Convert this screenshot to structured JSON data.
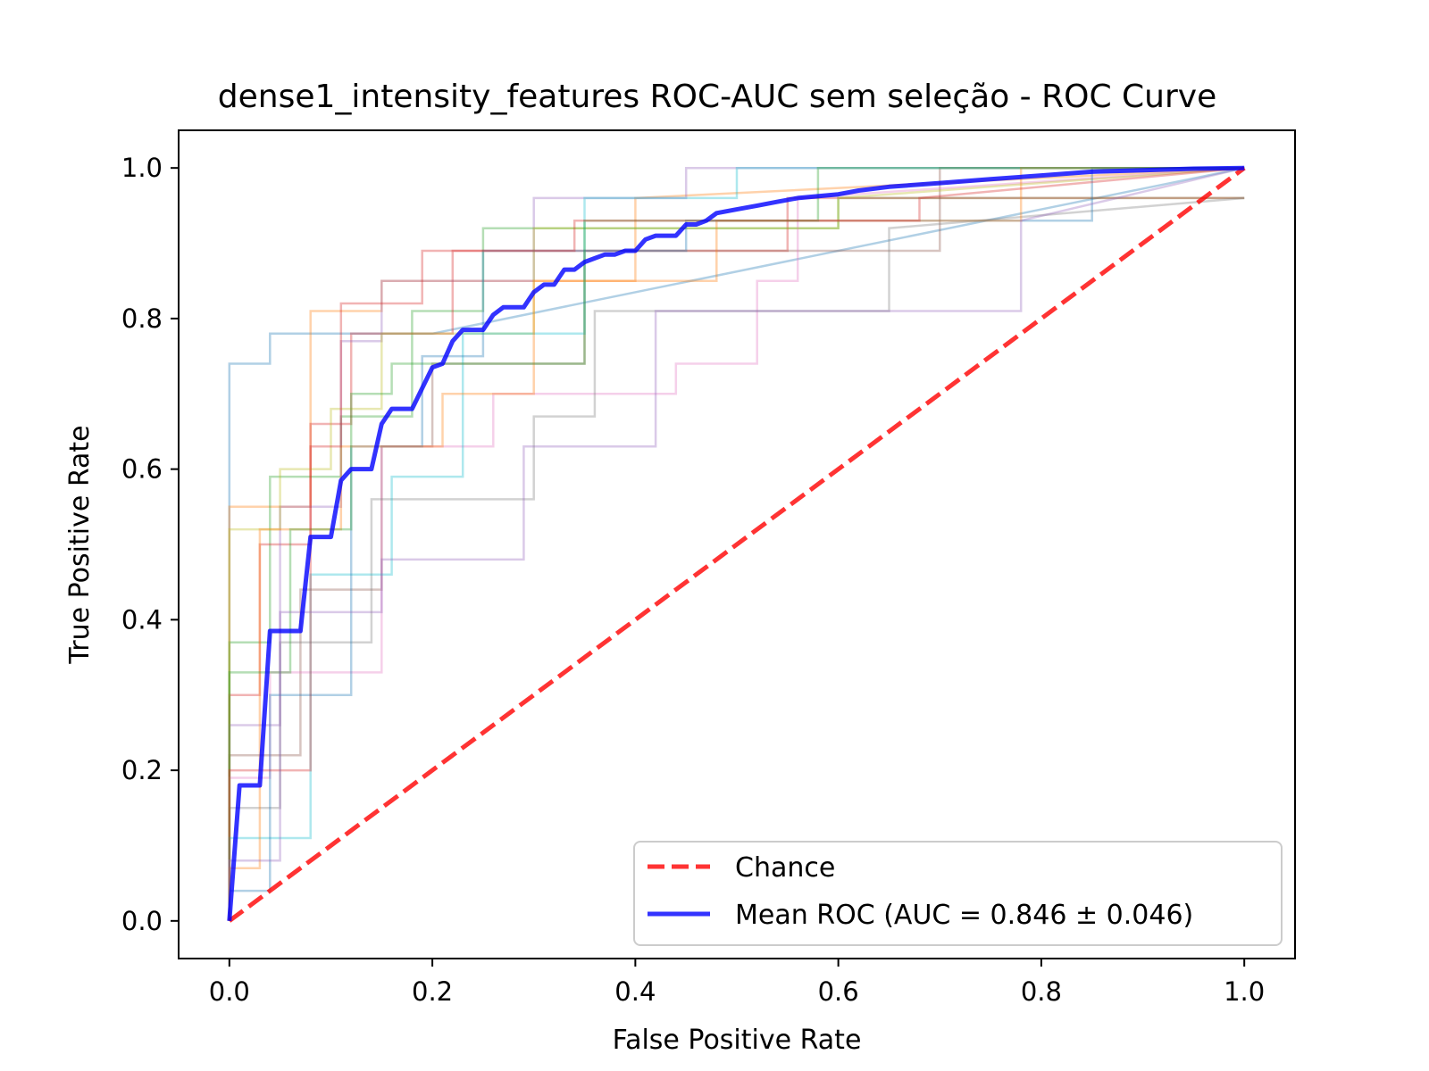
{
  "chart_data": {
    "type": "line",
    "title": "dense1_intensity_features ROC-AUC sem seleção - ROC Curve",
    "xlabel": "False Positive Rate",
    "ylabel": "True Positive Rate",
    "xlim": [
      -0.05,
      1.05
    ],
    "ylim": [
      -0.05,
      1.05
    ],
    "xticks": [
      0.0,
      0.2,
      0.4,
      0.6,
      0.8,
      1.0
    ],
    "yticks": [
      0.0,
      0.2,
      0.4,
      0.6,
      0.8,
      1.0
    ],
    "xtick_labels": [
      "0.0",
      "0.2",
      "0.4",
      "0.6",
      "0.8",
      "1.0"
    ],
    "ytick_labels": [
      "0.0",
      "0.2",
      "0.4",
      "0.6",
      "0.8",
      "1.0"
    ],
    "grid": false,
    "legend_position": "lower-right",
    "legend": [
      {
        "label": "Chance",
        "color": "#ff0000",
        "style": "dashed"
      },
      {
        "label": "Mean ROC (AUC = 0.846 ± 0.046)",
        "color": "#0000ff",
        "style": "solid"
      }
    ],
    "series": [
      {
        "name": "Chance",
        "color": "#ff0000",
        "style": "dashed",
        "x": [
          0.0,
          1.0
        ],
        "y": [
          0.0,
          1.0
        ]
      },
      {
        "name": "Mean ROC (AUC = 0.846 ± 0.046)",
        "color": "#0000ff",
        "style": "solid",
        "x": [
          0.0,
          0.01,
          0.03,
          0.04,
          0.07,
          0.08,
          0.1,
          0.11,
          0.12,
          0.14,
          0.15,
          0.16,
          0.18,
          0.2,
          0.21,
          0.22,
          0.23,
          0.25,
          0.26,
          0.27,
          0.29,
          0.3,
          0.31,
          0.32,
          0.33,
          0.34,
          0.35,
          0.36,
          0.37,
          0.38,
          0.39,
          0.4,
          0.41,
          0.42,
          0.44,
          0.45,
          0.46,
          0.47,
          0.48,
          0.5,
          0.52,
          0.54,
          0.56,
          0.6,
          0.62,
          0.65,
          0.7,
          0.75,
          0.8,
          0.85,
          0.9,
          0.95,
          1.0
        ],
        "y": [
          0.0,
          0.18,
          0.18,
          0.385,
          0.385,
          0.51,
          0.51,
          0.585,
          0.6,
          0.6,
          0.66,
          0.68,
          0.68,
          0.735,
          0.74,
          0.77,
          0.785,
          0.785,
          0.805,
          0.815,
          0.815,
          0.835,
          0.845,
          0.845,
          0.865,
          0.865,
          0.875,
          0.88,
          0.885,
          0.885,
          0.89,
          0.89,
          0.905,
          0.91,
          0.91,
          0.925,
          0.925,
          0.93,
          0.94,
          0.945,
          0.95,
          0.955,
          0.96,
          0.965,
          0.97,
          0.975,
          0.98,
          0.985,
          0.99,
          0.995,
          0.997,
          0.999,
          1.0
        ]
      }
    ],
    "fold_colors": [
      "#1f77b4",
      "#ff7f0e",
      "#2ca02c",
      "#d62728",
      "#9467bd",
      "#8c564b",
      "#e377c2",
      "#7f7f7f",
      "#bcbd22",
      "#17becf"
    ],
    "fold_curves": [
      {
        "x": [
          0,
          0,
          0.04,
          0.04,
          0.2,
          1.0
        ],
        "y": [
          0,
          0.74,
          0.74,
          0.78,
          0.78,
          1.0
        ]
      },
      {
        "x": [
          0,
          0,
          0.08,
          0.08,
          0.15,
          0.15,
          0.4,
          0.4,
          1.0
        ],
        "y": [
          0,
          0.55,
          0.55,
          0.81,
          0.81,
          0.85,
          0.85,
          0.96,
          1.0
        ]
      },
      {
        "x": [
          0,
          0,
          0.04,
          0.04,
          0.11,
          0.11,
          0.18,
          0.18,
          0.25,
          0.25,
          0.6,
          0.6,
          1.0
        ],
        "y": [
          0,
          0.37,
          0.37,
          0.59,
          0.59,
          0.67,
          0.67,
          0.81,
          0.81,
          0.92,
          0.92,
          0.96,
          0.96
        ]
      },
      {
        "x": [
          0,
          0,
          0.03,
          0.03,
          0.08,
          0.08,
          0.12,
          0.12,
          0.22,
          0.22,
          0.55,
          0.55,
          1.0
        ],
        "y": [
          0,
          0.3,
          0.3,
          0.5,
          0.5,
          0.66,
          0.66,
          0.78,
          0.78,
          0.89,
          0.89,
          0.96,
          0.96
        ]
      },
      {
        "x": [
          0,
          0,
          0.05,
          0.05,
          0.11,
          0.11,
          0.15,
          0.15,
          0.3,
          0.3,
          0.45,
          0.45,
          1.0
        ],
        "y": [
          0,
          0.26,
          0.26,
          0.55,
          0.55,
          0.77,
          0.77,
          0.85,
          0.85,
          0.96,
          0.96,
          1.0,
          1.0
        ]
      },
      {
        "x": [
          0,
          0,
          0.07,
          0.07,
          0.15,
          0.15,
          0.2,
          0.2,
          0.35,
          0.35,
          0.7,
          0.7,
          1.0
        ],
        "y": [
          0,
          0.22,
          0.22,
          0.44,
          0.44,
          0.63,
          0.63,
          0.74,
          0.74,
          0.89,
          0.89,
          1.0,
          1.0
        ]
      },
      {
        "x": [
          0,
          0,
          0.04,
          0.04,
          0.15,
          0.15,
          0.26,
          0.26,
          0.44,
          0.44,
          0.52,
          0.52,
          0.56,
          0.56,
          1.0
        ],
        "y": [
          0,
          0.19,
          0.19,
          0.33,
          0.33,
          0.63,
          0.63,
          0.7,
          0.7,
          0.74,
          0.74,
          0.85,
          0.85,
          0.96,
          1.0
        ]
      },
      {
        "x": [
          0,
          0,
          0.05,
          0.05,
          0.14,
          0.14,
          0.3,
          0.3,
          0.36,
          0.36,
          0.65,
          0.65,
          1.0
        ],
        "y": [
          0,
          0.15,
          0.15,
          0.37,
          0.37,
          0.56,
          0.56,
          0.67,
          0.67,
          0.81,
          0.81,
          0.92,
          0.96
        ]
      },
      {
        "x": [
          0,
          0,
          0.05,
          0.05,
          0.1,
          0.1,
          0.15,
          0.15,
          0.3,
          0.3,
          0.6,
          0.6,
          1.0
        ],
        "y": [
          0,
          0.52,
          0.52,
          0.6,
          0.6,
          0.68,
          0.68,
          0.78,
          0.78,
          0.92,
          0.92,
          0.96,
          1.0
        ]
      },
      {
        "x": [
          0,
          0,
          0.08,
          0.08,
          0.16,
          0.16,
          0.23,
          0.23,
          0.35,
          0.35,
          0.5,
          0.5,
          1.0
        ],
        "y": [
          0,
          0.11,
          0.11,
          0.46,
          0.46,
          0.59,
          0.59,
          0.78,
          0.78,
          0.96,
          0.96,
          1.0,
          1.0
        ]
      },
      {
        "x": [
          0,
          0,
          0.04,
          0.04,
          0.12,
          0.12,
          0.19,
          0.19,
          0.25,
          0.25,
          0.45,
          0.45,
          0.85,
          0.85,
          1.0
        ],
        "y": [
          0,
          0.04,
          0.04,
          0.3,
          0.3,
          0.63,
          0.63,
          0.75,
          0.75,
          0.89,
          0.89,
          0.93,
          0.93,
          1.0,
          1.0
        ]
      },
      {
        "x": [
          0,
          0,
          0.03,
          0.03,
          0.11,
          0.11,
          0.21,
          0.21,
          0.3,
          0.3,
          0.48,
          0.48,
          0.78,
          0.78,
          1.0
        ],
        "y": [
          0,
          0.07,
          0.07,
          0.52,
          0.52,
          0.63,
          0.63,
          0.7,
          0.7,
          0.85,
          0.85,
          0.93,
          0.93,
          1.0,
          1.0
        ]
      },
      {
        "x": [
          0,
          0,
          0.06,
          0.06,
          0.12,
          0.12,
          0.16,
          0.16,
          0.35,
          0.35,
          0.58,
          0.58,
          1.0
        ],
        "y": [
          0,
          0.33,
          0.33,
          0.52,
          0.52,
          0.7,
          0.7,
          0.74,
          0.74,
          0.93,
          0.93,
          1.0,
          1.0
        ]
      },
      {
        "x": [
          0,
          0,
          0.08,
          0.08,
          0.11,
          0.11,
          0.19,
          0.19,
          0.34,
          0.34,
          0.68,
          0.68,
          1.0
        ],
        "y": [
          0,
          0.2,
          0.2,
          0.63,
          0.63,
          0.82,
          0.82,
          0.89,
          0.89,
          0.93,
          0.93,
          0.96,
          1.0
        ]
      },
      {
        "x": [
          0,
          0,
          0.05,
          0.05,
          0.15,
          0.15,
          0.29,
          0.29,
          0.42,
          0.42,
          0.78,
          0.78,
          1.0
        ],
        "y": [
          0,
          0.08,
          0.08,
          0.41,
          0.41,
          0.48,
          0.48,
          0.63,
          0.63,
          0.81,
          0.81,
          0.93,
          1.0
        ]
      }
    ]
  }
}
